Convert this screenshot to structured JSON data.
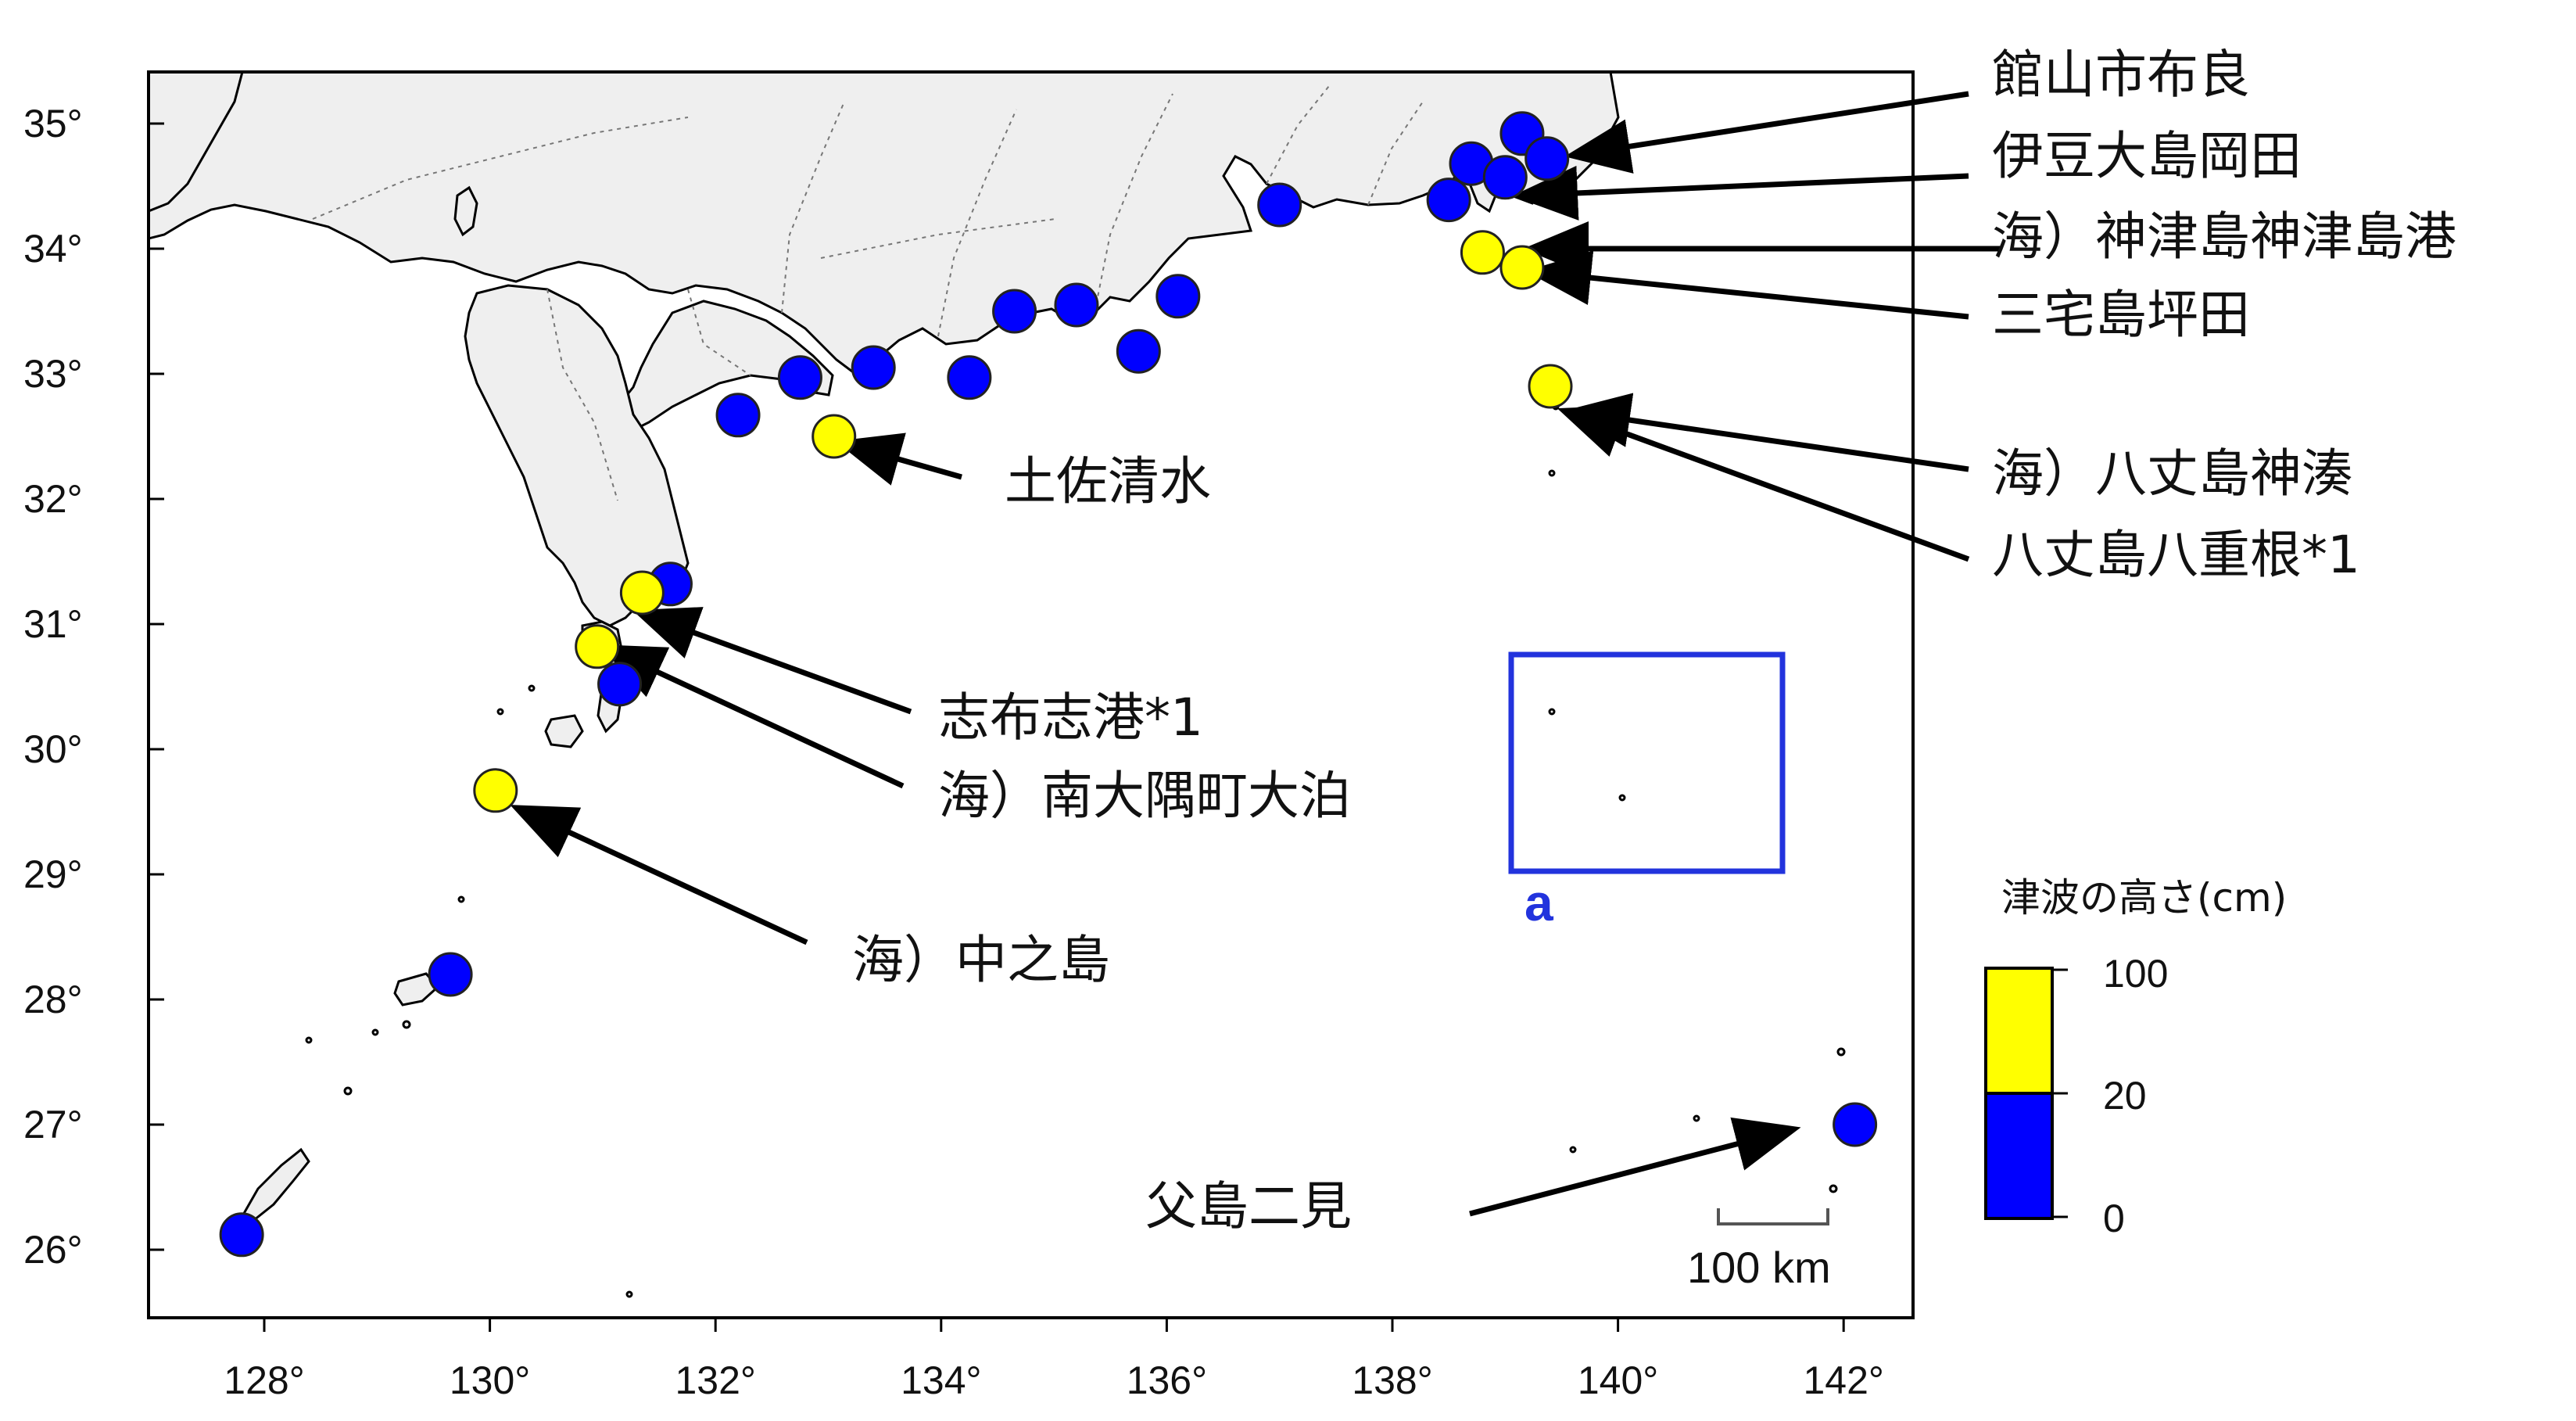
{
  "axes": {
    "lon_ticks": [
      "128°",
      "130°",
      "132°",
      "134°",
      "136°",
      "138°",
      "140°",
      "142°"
    ],
    "lat_ticks": [
      "35°",
      "34°",
      "33°",
      "32°",
      "31°",
      "30°",
      "29°",
      "28°",
      "27°",
      "26°"
    ]
  },
  "colors": {
    "high": "#ffff00",
    "low": "#0000ff",
    "box": "#2233dd",
    "arrow": "#000000"
  },
  "legend": {
    "title": "津波の高さ(cm)",
    "ticks": [
      "100",
      "20",
      "0"
    ]
  },
  "scale_bar": {
    "label": "100 km"
  },
  "inset_box": {
    "label": "a"
  },
  "labels": [
    "館山市布良",
    "伊豆大島岡田",
    "海）神津島神津島港",
    "三宅島坪田",
    "海）八丈島神湊",
    "八丈島八重根*1",
    "土佐清水",
    "志布志港*1",
    "海）南大隅町大泊",
    "海）中之島",
    "父島二見"
  ],
  "stations": [
    {
      "lon": 139.15,
      "lat": 34.92,
      "level": "low"
    },
    {
      "lon": 139.37,
      "lat": 34.72,
      "level": "low"
    },
    {
      "lon": 138.7,
      "lat": 34.68,
      "level": "low"
    },
    {
      "lon": 139.0,
      "lat": 34.57,
      "level": "low"
    },
    {
      "lon": 138.5,
      "lat": 34.39,
      "level": "low"
    },
    {
      "lon": 138.8,
      "lat": 33.97,
      "level": "high"
    },
    {
      "lon": 139.15,
      "lat": 33.85,
      "level": "high"
    },
    {
      "lon": 139.4,
      "lat": 32.9,
      "level": "high"
    },
    {
      "lon": 137.0,
      "lat": 34.35,
      "level": "low"
    },
    {
      "lon": 136.1,
      "lat": 33.62,
      "level": "low"
    },
    {
      "lon": 135.2,
      "lat": 33.55,
      "level": "low"
    },
    {
      "lon": 135.75,
      "lat": 33.18,
      "level": "low"
    },
    {
      "lon": 134.65,
      "lat": 33.5,
      "level": "low"
    },
    {
      "lon": 134.25,
      "lat": 32.97,
      "level": "low"
    },
    {
      "lon": 133.4,
      "lat": 33.05,
      "level": "low"
    },
    {
      "lon": 132.75,
      "lat": 32.97,
      "level": "low"
    },
    {
      "lon": 132.2,
      "lat": 32.67,
      "level": "low"
    },
    {
      "lon": 133.05,
      "lat": 32.5,
      "level": "high"
    },
    {
      "lon": 131.6,
      "lat": 31.32,
      "level": "low"
    },
    {
      "lon": 131.35,
      "lat": 31.25,
      "level": "high"
    },
    {
      "lon": 130.95,
      "lat": 30.82,
      "level": "high"
    },
    {
      "lon": 131.15,
      "lat": 30.52,
      "level": "low"
    },
    {
      "lon": 130.05,
      "lat": 29.67,
      "level": "high"
    },
    {
      "lon": 129.65,
      "lat": 28.2,
      "level": "low"
    },
    {
      "lon": 127.8,
      "lat": 26.12,
      "level": "low"
    },
    {
      "lon": 142.1,
      "lat": 27.0,
      "level": "low"
    }
  ]
}
